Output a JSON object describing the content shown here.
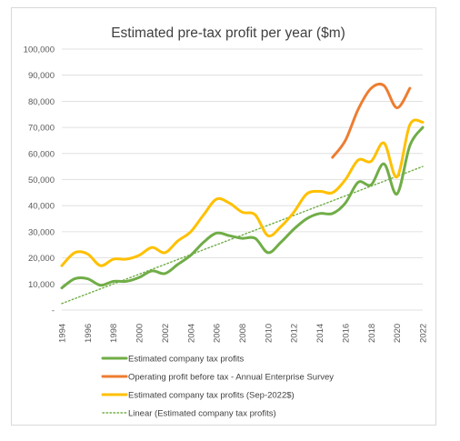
{
  "chart_data": {
    "type": "line",
    "title": "Estimated pre-tax profit per year ($m)",
    "xlabel": "",
    "ylabel": "",
    "ylim": [
      0,
      100000
    ],
    "xlim": [
      1994,
      2022
    ],
    "y_ticks": [
      "-",
      "10,000",
      "20,000",
      "30,000",
      "40,000",
      "50,000",
      "60,000",
      "70,000",
      "80,000",
      "90,000",
      "100,000"
    ],
    "x_ticks": [
      "1994",
      "1996",
      "1998",
      "2000",
      "2002",
      "2004",
      "2006",
      "2008",
      "2010",
      "2012",
      "2014",
      "2016",
      "2018",
      "2020",
      "2022"
    ],
    "grid": true,
    "legend_position": "bottom-left",
    "series": [
      {
        "name": "Estimated company tax profits",
        "color": "#70ad47",
        "style": "solid",
        "x": [
          1994,
          1995,
          1996,
          1997,
          1998,
          1999,
          2000,
          2001,
          2002,
          2003,
          2004,
          2005,
          2006,
          2007,
          2008,
          2009,
          2010,
          2011,
          2012,
          2013,
          2014,
          2015,
          2016,
          2017,
          2018,
          2019,
          2020,
          2021,
          2022
        ],
        "y": [
          8500,
          12000,
          12000,
          9500,
          11000,
          11000,
          12500,
          15000,
          14000,
          17500,
          21000,
          26000,
          29500,
          28500,
          27500,
          27500,
          22000,
          26000,
          31000,
          35000,
          37000,
          37000,
          41000,
          49000,
          48000,
          56000,
          44500,
          63000,
          70000
        ]
      },
      {
        "name": "Operating profit before tax - Annual Enterprise Survey",
        "color": "#ed7d31",
        "style": "solid",
        "x": [
          2015,
          2016,
          2017,
          2018,
          2019,
          2020,
          2021
        ],
        "y": [
          58500,
          65000,
          77000,
          85000,
          86000,
          77500,
          85000
        ]
      },
      {
        "name": "Estimated company tax profits (Sep-2022$)",
        "color": "#ffc000",
        "style": "solid",
        "x": [
          1994,
          1995,
          1996,
          1997,
          1998,
          1999,
          2000,
          2001,
          2002,
          2003,
          2004,
          2005,
          2006,
          2007,
          2008,
          2009,
          2010,
          2011,
          2012,
          2013,
          2014,
          2015,
          2016,
          2017,
          2018,
          2019,
          2020,
          2021,
          2022
        ],
        "y": [
          17000,
          22000,
          21500,
          17000,
          19500,
          19500,
          21000,
          24000,
          22000,
          26500,
          30000,
          36500,
          42500,
          41000,
          37500,
          36500,
          28500,
          32000,
          37500,
          44500,
          45500,
          45000,
          50000,
          57500,
          57000,
          64000,
          51000,
          71000,
          72000
        ]
      },
      {
        "name": "Linear (Estimated company tax profits)",
        "color": "#70ad47",
        "style": "dotted",
        "x": [
          1994,
          2022
        ],
        "y": [
          2500,
          55000
        ]
      }
    ]
  }
}
